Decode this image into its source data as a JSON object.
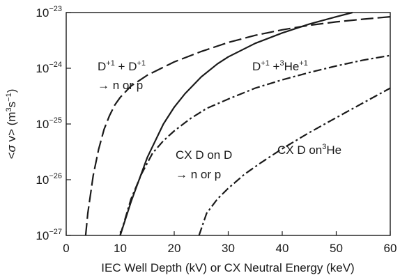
{
  "chart_data": {
    "type": "line",
    "xlabel": "IEC Well Depth (kV) or CX Neutral Energy (keV)",
    "ylabel": {
      "prefix": "<",
      "sigma": "σ",
      "mid": " v> (m",
      "sup1": "3",
      "s": "s",
      "sup2": "−1",
      "suffix": ")"
    },
    "xlim": [
      0,
      60
    ],
    "ylim": [
      1e-27,
      1e-23
    ],
    "yscale": "log",
    "grid": false,
    "x_ticks": [
      "0",
      "10",
      "20",
      "30",
      "40",
      "50",
      "60"
    ],
    "y_ticks": [
      {
        "base": "10",
        "exp": "−23",
        "value": 1e-23
      },
      {
        "base": "10",
        "exp": "−24",
        "value": 1e-24
      },
      {
        "base": "10",
        "exp": "−25",
        "value": 1e-25
      },
      {
        "base": "10",
        "exp": "−26",
        "value": 1e-26
      },
      {
        "base": "10",
        "exp": "−27",
        "value": 1e-27
      }
    ],
    "series": [
      {
        "id": "dd",
        "dash": "long-dash",
        "x": [
          3.6,
          4.0,
          5.0,
          6.0,
          7.0,
          8.0,
          9.0,
          10.0,
          12.0,
          15.0,
          20.0,
          25.0,
          30.0,
          35.0,
          40.0,
          45.0,
          50.0,
          55.0,
          60.0
        ],
        "y": [
          1e-27,
          2.5e-27,
          1.2e-26,
          3.5e-26,
          8e-26,
          1.4e-25,
          2.2e-25,
          3e-25,
          4.8e-25,
          7.5e-25,
          1.3e-24,
          2e-24,
          2.9e-24,
          3.9e-24,
          4.9e-24,
          5.9e-24,
          6.8e-24,
          7.6e-24,
          8.4e-24
        ]
      },
      {
        "id": "dhe3",
        "dash": "solid",
        "x": [
          10.0,
          12.0,
          15.0,
          18.0,
          20.0,
          22.0,
          25.0,
          28.0,
          30.0,
          35.0,
          40.0,
          45.0,
          50.0,
          53.0
        ],
        "y": [
          1e-27,
          4e-27,
          2.5e-26,
          1e-25,
          2e-25,
          3.5e-25,
          7e-25,
          1.2e-24,
          1.6e-24,
          2.8e-24,
          4.3e-24,
          6.2e-24,
          8.4e-24,
          1e-23
        ]
      },
      {
        "id": "cx_dd",
        "dash": "dash-dot",
        "x": [
          10.0,
          12.0,
          14.0,
          16.0,
          18.0,
          20.0,
          23.0,
          26.0,
          30.0,
          35.0,
          40.0,
          45.0,
          50.0,
          55.0,
          60.0
        ],
        "y": [
          1e-27,
          4.5e-27,
          1.3e-26,
          3e-26,
          5e-26,
          7.5e-26,
          1.25e-25,
          1.9e-25,
          2.8e-25,
          4.4e-25,
          6.2e-25,
          8.4e-25,
          1.1e-24,
          1.4e-24,
          1.7e-24
        ]
      },
      {
        "id": "cx_dhe3",
        "dash": "dash-dot",
        "x": [
          24.6,
          26.0,
          28.0,
          30.0,
          33.0,
          36.0,
          40.0,
          45.0,
          50.0,
          55.0,
          60.0
        ],
        "y": [
          1e-27,
          2.5e-27,
          4.5e-27,
          7e-27,
          1.25e-26,
          2e-26,
          3.6e-26,
          7e-26,
          1.3e-25,
          2.4e-25,
          4.4e-25
        ]
      }
    ],
    "annotations": [
      {
        "id": "dd",
        "line1_parts": [
          "D",
          "+1",
          " + D",
          "+1"
        ],
        "line2": "→ n or p"
      },
      {
        "id": "dhe3",
        "parts": [
          "D",
          "+1",
          " +",
          "3",
          "He",
          "+1"
        ]
      },
      {
        "id": "cx_dd",
        "line1": "CX D on D",
        "line2": "→ n or p"
      },
      {
        "id": "cx_dhe3",
        "parts": [
          "CX D on",
          "3",
          "He"
        ]
      }
    ]
  }
}
